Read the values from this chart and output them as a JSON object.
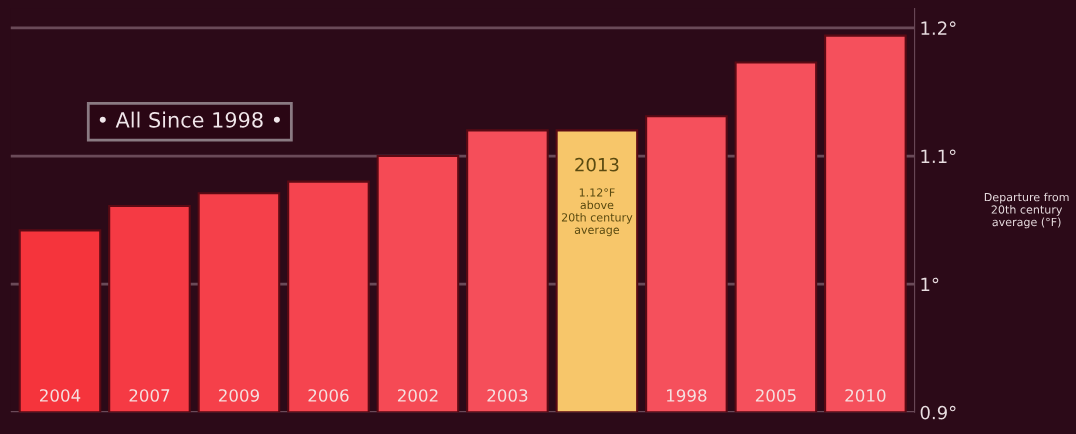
{
  "chart_data": {
    "type": "bar",
    "categories": [
      "2004",
      "2007",
      "2009",
      "2006",
      "2002",
      "2003",
      "2013",
      "1998",
      "2005",
      "2010"
    ],
    "values": [
      1.042,
      1.061,
      1.071,
      1.08,
      1.1,
      1.12,
      1.12,
      1.131,
      1.173,
      1.194
    ],
    "colors": [
      "#f5343c",
      "#f53a44",
      "#f5404a",
      "#f5444f",
      "#f54a55",
      "#f54e5a",
      "#f7c66a",
      "#f5505c",
      "#f5505c",
      "#f5505c"
    ],
    "ylim": [
      0.9,
      1.215
    ],
    "yticks": [
      {
        "value": 0.9,
        "label": "0.9°"
      },
      {
        "value": 1.0,
        "label": "1°"
      },
      {
        "value": 1.1,
        "label": "1.1°"
      },
      {
        "value": 1.2,
        "label": "1.2°"
      }
    ],
    "ylabel": "Departure from\n20th century\naverage (°F)",
    "annotations": [
      "• All Since 1998 •",
      "1.12°F\nabove\n20th century\naverage"
    ],
    "grid": "y"
  }
}
